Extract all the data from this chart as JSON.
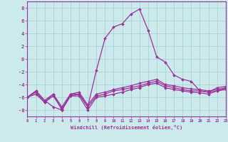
{
  "xlabel": "Windchill (Refroidissement éolien,°C)",
  "xlim": [
    0,
    23
  ],
  "ylim": [
    -9,
    9
  ],
  "xtick_labels": [
    "0",
    "1",
    "2",
    "3",
    "4",
    "5",
    "6",
    "7",
    "8",
    "9",
    "10",
    "11",
    "12",
    "13",
    "14",
    "15",
    "16",
    "17",
    "18",
    "19",
    "20",
    "21",
    "22",
    "23"
  ],
  "ytick_values": [
    -8,
    -6,
    -4,
    -2,
    0,
    2,
    4,
    6,
    8
  ],
  "bg_color": "#cce9ec",
  "grid_color": "#a8cdd4",
  "line_color": "#993399",
  "lines": [
    {
      "x": [
        0,
        1,
        2,
        3,
        4,
        5,
        6,
        7,
        8,
        9,
        10,
        11,
        12,
        13,
        14,
        15,
        16,
        17,
        18,
        19,
        20,
        21,
        22,
        23
      ],
      "y": [
        -6.0,
        -5.0,
        -6.5,
        -7.5,
        -8.0,
        -5.5,
        -5.5,
        -7.5,
        -1.8,
        3.2,
        5.0,
        5.5,
        7.0,
        7.8,
        4.5,
        0.3,
        -0.5,
        -2.5,
        -3.2,
        -3.5,
        -5.0,
        -5.2,
        -4.5,
        -4.3
      ]
    },
    {
      "x": [
        0,
        1,
        2,
        3,
        4,
        5,
        6,
        7,
        8,
        9,
        10,
        11,
        12,
        13,
        14,
        15,
        16,
        17,
        18,
        19,
        20,
        21,
        22,
        23
      ],
      "y": [
        -6.0,
        -5.0,
        -6.5,
        -5.5,
        -7.5,
        -5.5,
        -5.2,
        -7.2,
        -5.5,
        -5.2,
        -4.8,
        -4.5,
        -4.2,
        -3.8,
        -3.5,
        -3.2,
        -4.0,
        -4.2,
        -4.5,
        -4.7,
        -4.8,
        -5.0,
        -4.8,
        -4.5
      ]
    },
    {
      "x": [
        0,
        1,
        2,
        3,
        4,
        5,
        6,
        7,
        8,
        9,
        10,
        11,
        12,
        13,
        14,
        15,
        16,
        17,
        18,
        19,
        20,
        21,
        22,
        23
      ],
      "y": [
        -6.0,
        -5.2,
        -6.8,
        -5.8,
        -7.8,
        -5.8,
        -5.5,
        -7.5,
        -5.8,
        -5.5,
        -5.0,
        -4.8,
        -4.5,
        -4.2,
        -3.8,
        -3.5,
        -4.2,
        -4.5,
        -4.8,
        -5.0,
        -5.0,
        -5.2,
        -5.0,
        -4.8
      ]
    },
    {
      "x": [
        0,
        1,
        2,
        3,
        4,
        5,
        6,
        7,
        8,
        9,
        10,
        11,
        12,
        13,
        14,
        15,
        16,
        17,
        18,
        19,
        20,
        21,
        22,
        23
      ],
      "y": [
        -6.0,
        -5.5,
        -6.8,
        -5.5,
        -8.0,
        -5.8,
        -5.8,
        -8.0,
        -6.0,
        -5.8,
        -5.5,
        -5.2,
        -4.8,
        -4.5,
        -4.0,
        -3.8,
        -4.5,
        -4.8,
        -5.0,
        -5.2,
        -5.3,
        -5.5,
        -5.0,
        -4.6
      ]
    }
  ]
}
